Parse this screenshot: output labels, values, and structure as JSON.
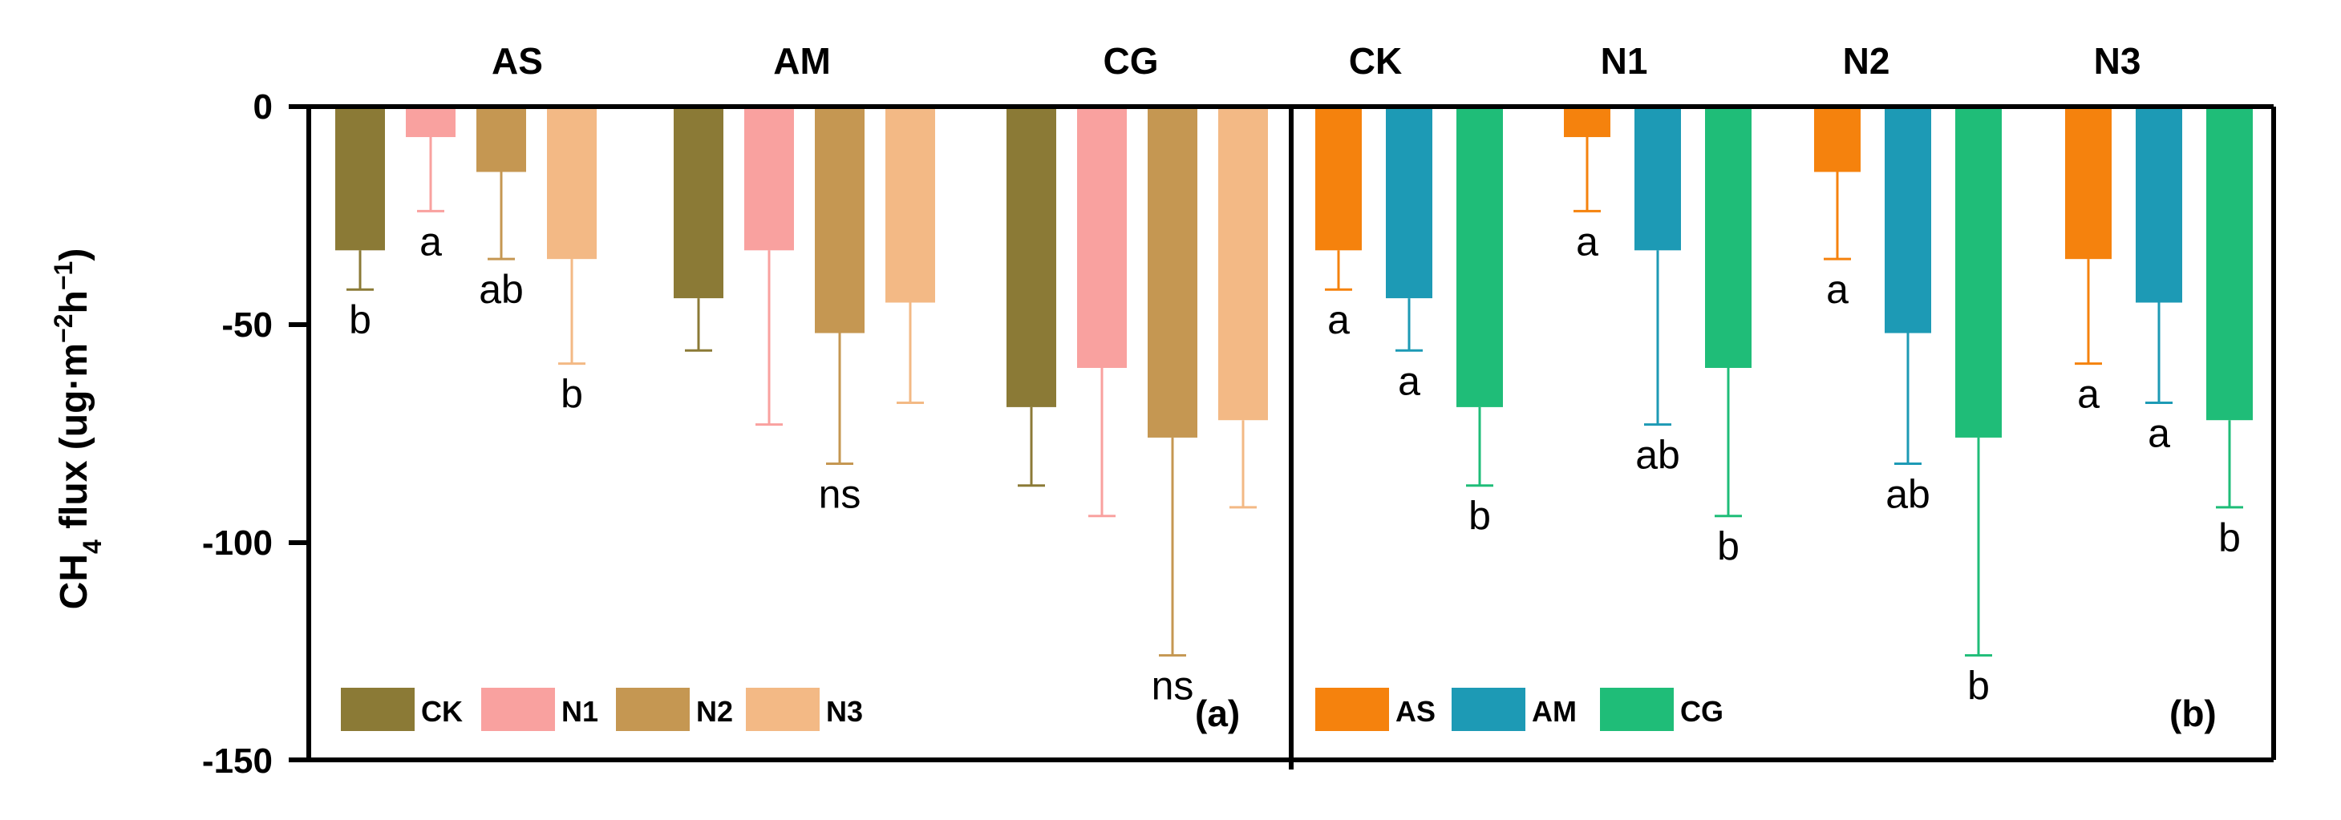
{
  "chart_data": [
    {
      "type": "bar",
      "panel_label": "(a)",
      "ylabel_main": "CH",
      "ylabel_sub": "4",
      "ylabel_rest": " flux (ug·m",
      "ylabel_sup1": "−2",
      "ylabel_mid": "h",
      "ylabel_sup2": "−1",
      "ylabel_end": ")",
      "ylim": [
        -150,
        0
      ],
      "yticks": [
        "0",
        "-50",
        "-100",
        "-150"
      ],
      "ytick_values": [
        0,
        -50,
        -100,
        -150
      ],
      "categories": [
        "AS",
        "AM",
        "CG"
      ],
      "legend_position": "bottom-left",
      "series": [
        {
          "name": "CK",
          "color": "#8b7a36",
          "values": [
            -33,
            -44,
            -69
          ],
          "errors": [
            9,
            12,
            18
          ],
          "labels": [
            "b",
            "",
            ""
          ]
        },
        {
          "name": "N1",
          "color": "#f9a19f",
          "values": [
            -7,
            -33,
            -60
          ],
          "errors": [
            17,
            40,
            34
          ],
          "labels": [
            "a",
            "",
            ""
          ]
        },
        {
          "name": "N2",
          "color": "#c59752",
          "values": [
            -15,
            -52,
            -76
          ],
          "errors": [
            20,
            30,
            50
          ],
          "labels": [
            "ab",
            "ns",
            "ns"
          ]
        },
        {
          "name": "N3",
          "color": "#f3b985",
          "values": [
            -35,
            -45,
            -72
          ],
          "errors": [
            24,
            23,
            20
          ],
          "labels": [
            "b",
            "",
            ""
          ]
        }
      ]
    },
    {
      "type": "bar",
      "panel_label": "(b)",
      "ylim": [
        -150,
        0
      ],
      "categories": [
        "CK",
        "N1",
        "N2",
        "N3"
      ],
      "legend_position": "bottom-left",
      "series": [
        {
          "name": "AS",
          "color": "#f5820d",
          "values": [
            -33,
            -7,
            -15,
            -35
          ],
          "errors": [
            9,
            17,
            20,
            24
          ],
          "labels": [
            "a",
            "a",
            "a",
            "a"
          ]
        },
        {
          "name": "AM",
          "color": "#1d9ab5",
          "values": [
            -44,
            -33,
            -52,
            -45
          ],
          "errors": [
            12,
            40,
            30,
            23
          ],
          "labels": [
            "a",
            "ab",
            "ab",
            "a"
          ]
        },
        {
          "name": "CG",
          "color": "#1fbd78",
          "values": [
            -69,
            -60,
            -76,
            -72
          ],
          "errors": [
            18,
            34,
            50,
            20
          ],
          "labels": [
            "b",
            "b",
            "b",
            "b"
          ]
        }
      ]
    }
  ]
}
